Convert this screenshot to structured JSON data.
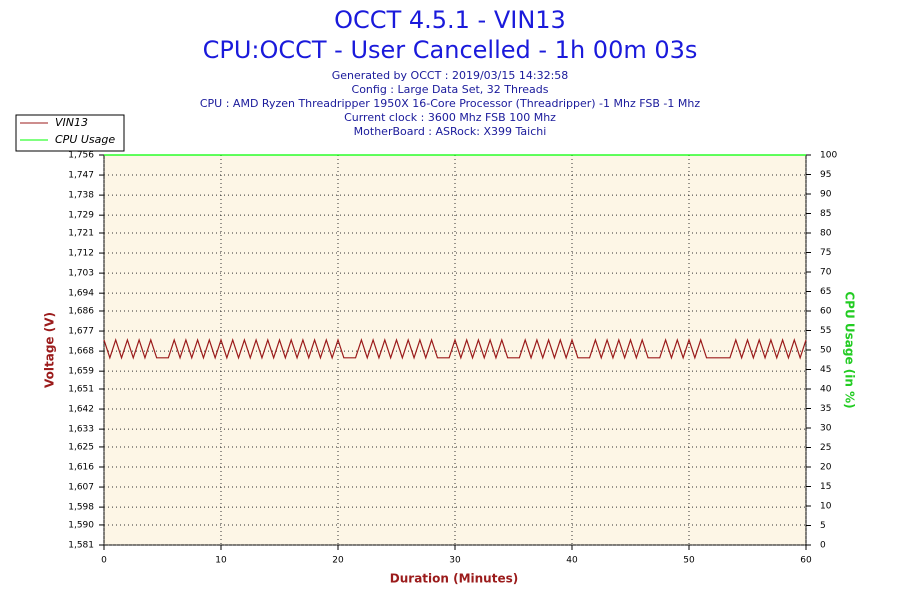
{
  "chart_data": {
    "type": "line",
    "title": "OCCT 4.5.1 - VIN13",
    "subtitle": "CPU:OCCT - User Cancelled - 1h 00m 03s",
    "info": [
      "Generated by OCCT : 2019/03/15 14:32:58",
      "Config : Large Data Set, 32 Threads",
      "CPU : AMD Ryzen Threadripper 1950X 16-Core Processor (Threadripper) -1 Mhz FSB -1 Mhz",
      "Current clock : 3600 Mhz FSB 100 Mhz",
      "MotherBoard : ASRock: X399 Taichi"
    ],
    "xlabel": "Duration (Minutes)",
    "ylabel": "Voltage (V)",
    "y2label": "CPU Usage (in %)",
    "xlim": [
      0,
      60
    ],
    "xticks": [
      0,
      10,
      20,
      30,
      40,
      50,
      60
    ],
    "ylim": [
      1.581,
      1.756
    ],
    "yticks": [
      {
        "value": 1.581,
        "label": "1,581"
      },
      {
        "value": 1.59,
        "label": "1,590"
      },
      {
        "value": 1.598,
        "label": "1,598"
      },
      {
        "value": 1.607,
        "label": "1,607"
      },
      {
        "value": 1.616,
        "label": "1,616"
      },
      {
        "value": 1.625,
        "label": "1,625"
      },
      {
        "value": 1.633,
        "label": "1,633"
      },
      {
        "value": 1.642,
        "label": "1,642"
      },
      {
        "value": 1.651,
        "label": "1,651"
      },
      {
        "value": 1.659,
        "label": "1,659"
      },
      {
        "value": 1.668,
        "label": "1,668"
      },
      {
        "value": 1.677,
        "label": "1,677"
      },
      {
        "value": 1.686,
        "label": "1,686"
      },
      {
        "value": 1.694,
        "label": "1,694"
      },
      {
        "value": 1.703,
        "label": "1,703"
      },
      {
        "value": 1.712,
        "label": "1,712"
      },
      {
        "value": 1.721,
        "label": "1,721"
      },
      {
        "value": 1.729,
        "label": "1,729"
      },
      {
        "value": 1.738,
        "label": "1,738"
      },
      {
        "value": 1.747,
        "label": "1,747"
      },
      {
        "value": 1.756,
        "label": "1,756"
      }
    ],
    "y2lim": [
      0,
      100
    ],
    "y2ticks": [
      0,
      5,
      10,
      15,
      20,
      25,
      30,
      35,
      40,
      45,
      50,
      55,
      60,
      65,
      70,
      75,
      80,
      85,
      90,
      95,
      100
    ],
    "grid": true,
    "legend": "top-left",
    "series": [
      {
        "name": "VIN13",
        "color": "#9b1b1b",
        "x": [
          0,
          0.5,
          1,
          1.5,
          2,
          2.5,
          3,
          3.5,
          4,
          4.5,
          5,
          5.5,
          6,
          6.5,
          7,
          7.5,
          8,
          8.5,
          9,
          9.5,
          10,
          10.5,
          11,
          11.5,
          12,
          12.5,
          13,
          13.5,
          14,
          14.5,
          15,
          15.5,
          16,
          16.5,
          17,
          17.5,
          18,
          18.5,
          19,
          19.5,
          20,
          20.5,
          21,
          21.5,
          22,
          22.5,
          23,
          23.5,
          24,
          24.5,
          25,
          25.5,
          26,
          26.5,
          27,
          27.5,
          28,
          28.5,
          29,
          29.5,
          30,
          30.5,
          31,
          31.5,
          32,
          32.5,
          33,
          33.5,
          34,
          34.5,
          35,
          35.5,
          36,
          36.5,
          37,
          37.5,
          38,
          38.5,
          39,
          39.5,
          40,
          40.5,
          41,
          41.5,
          42,
          42.5,
          43,
          43.5,
          44,
          44.5,
          45,
          45.5,
          46,
          46.5,
          47,
          47.5,
          48,
          48.5,
          49,
          49.5,
          50,
          50.5,
          51,
          51.5,
          52,
          52.5,
          53,
          53.5,
          54,
          54.5,
          55,
          55.5,
          56,
          56.5,
          57,
          57.5,
          58,
          58.5,
          59,
          59.5,
          60
        ],
        "values": [
          1.673,
          1.665,
          1.673,
          1.665,
          1.673,
          1.665,
          1.673,
          1.665,
          1.673,
          1.665,
          1.665,
          1.665,
          1.673,
          1.665,
          1.673,
          1.665,
          1.673,
          1.665,
          1.673,
          1.665,
          1.673,
          1.665,
          1.673,
          1.665,
          1.673,
          1.665,
          1.673,
          1.665,
          1.673,
          1.665,
          1.673,
          1.665,
          1.673,
          1.665,
          1.673,
          1.665,
          1.673,
          1.665,
          1.673,
          1.665,
          1.673,
          1.665,
          1.665,
          1.665,
          1.673,
          1.665,
          1.673,
          1.665,
          1.673,
          1.665,
          1.673,
          1.665,
          1.673,
          1.665,
          1.673,
          1.665,
          1.673,
          1.665,
          1.665,
          1.665,
          1.673,
          1.665,
          1.673,
          1.665,
          1.673,
          1.665,
          1.673,
          1.665,
          1.673,
          1.665,
          1.665,
          1.665,
          1.673,
          1.665,
          1.673,
          1.665,
          1.673,
          1.665,
          1.673,
          1.665,
          1.673,
          1.665,
          1.665,
          1.665,
          1.673,
          1.665,
          1.673,
          1.665,
          1.673,
          1.665,
          1.673,
          1.665,
          1.673,
          1.665,
          1.665,
          1.665,
          1.673,
          1.665,
          1.673,
          1.665,
          1.673,
          1.665,
          1.673,
          1.665,
          1.665,
          1.665,
          1.665,
          1.665,
          1.673,
          1.665,
          1.673,
          1.665,
          1.673,
          1.665,
          1.673,
          1.665,
          1.673,
          1.665,
          1.673,
          1.665,
          1.673
        ]
      },
      {
        "name": "CPU Usage",
        "color": "#00ff00",
        "axis": "y2",
        "x": [
          0,
          60
        ],
        "values": [
          100,
          100
        ]
      }
    ]
  }
}
